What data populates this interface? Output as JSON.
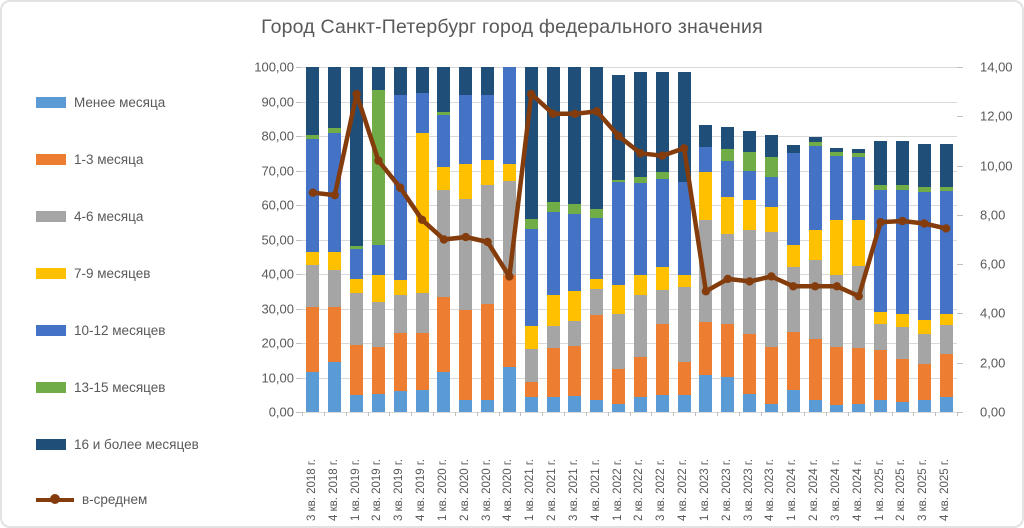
{
  "title": "Город Санкт-Петербург город федерального значения",
  "colors": {
    "text": "#595959",
    "grid": "#d9d9d9",
    "tick": "#bfbfbf",
    "border": "#e2e2e2",
    "background": "#ffffff"
  },
  "legend": [
    {
      "label": "Менее месяца",
      "color": "#5B9BD5",
      "type": "bar"
    },
    {
      "label": "1-3 месяца",
      "color": "#ED7D31",
      "type": "bar"
    },
    {
      "label": "4-6 месяца",
      "color": "#A5A5A5",
      "type": "bar"
    },
    {
      "label": "7-9 месяцев",
      "color": "#FFC000",
      "type": "bar"
    },
    {
      "label": "10-12 месяцев",
      "color": "#4472C4",
      "type": "bar"
    },
    {
      "label": "13-15 месяцев",
      "color": "#70AD47",
      "type": "bar"
    },
    {
      "label": "16 и более месяцев",
      "color": "#1F4E79",
      "type": "bar"
    },
    {
      "label": "в-среднем",
      "color": "#843C0C",
      "type": "line"
    }
  ],
  "left_axis": {
    "ticks": [
      "100,00",
      "90,00",
      "80,00",
      "70,00",
      "60,00",
      "50,00",
      "40,00",
      "30,00",
      "20,00",
      "10,00",
      "0,00"
    ],
    "min": 0,
    "max": 100,
    "step": 10
  },
  "right_axis": {
    "ticks": [
      "14,00",
      "12,00",
      "10,00",
      "8,00",
      "6,00",
      "4,00",
      "2,00",
      "0,00"
    ],
    "min": 0,
    "max": 14,
    "step": 2
  },
  "chart_data": {
    "type": "bar",
    "subtype": "stacked-bar-with-line",
    "title": "Город Санкт-Петербург город федерального значения",
    "left_ylim": [
      0,
      100
    ],
    "right_ylim": [
      0,
      14
    ],
    "grid": true,
    "legend_position": "left",
    "categories": [
      "3 кв. 2018 г.",
      "4 кв. 2018 г.",
      "1 кв. 2019 г.",
      "2 кв. 2019 г.",
      "3 кв. 2019 г.",
      "4 кв. 2019 г.",
      "1 кв. 2020 г.",
      "2 кв. 2020 г.",
      "3 кв. 2020 г.",
      "4 кв. 2020 г.",
      "1 кв. 2021 г.",
      "2 кв. 2021 г.",
      "3 кв. 2021 г.",
      "4 кв. 2021 г.",
      "1 кв. 2022 г.",
      "2 кв. 2022 г.",
      "3 кв. 2022 г.",
      "4 кв. 2022 г.",
      "1 кв. 2023 г.",
      "2 кв. 2023 г.",
      "3 кв. 2023 г.",
      "4 кв. 2023 г.",
      "1 кв. 2024 г.",
      "2 кв. 2024 г.",
      "3 кв. 2024 г.",
      "4 кв. 2024 г.",
      "1 кв. 2025 г.",
      "2 кв. 2025 г.",
      "3 кв. 2025 г.",
      "4 кв. 2025 г."
    ],
    "series": [
      {
        "name": "Менее месяца",
        "color": "#5B9BD5",
        "values": [
          11.7,
          14.6,
          4.9,
          5.3,
          6.0,
          6.4,
          11.6,
          3.5,
          3.4,
          13.0,
          4.3,
          4.3,
          4.5,
          3.4,
          2.4,
          4.3,
          4.8,
          4.8,
          10.6,
          10.1,
          5.3,
          2.4,
          6.3,
          3.4,
          1.9,
          2.2,
          3.4,
          2.9,
          3.4,
          4.3
        ]
      },
      {
        "name": "1-3 месяца",
        "color": "#ED7D31",
        "values": [
          18.8,
          15.9,
          14.5,
          13.5,
          16.8,
          16.4,
          21.7,
          26.0,
          28.0,
          26.6,
          4.4,
          14.3,
          14.5,
          24.6,
          10.2,
          11.6,
          20.8,
          9.7,
          15.5,
          15.5,
          17.4,
          16.4,
          16.9,
          17.9,
          16.9,
          16.4,
          14.5,
          12.6,
          10.6,
          12.6
        ]
      },
      {
        "name": "4-6 месяца",
        "color": "#A5A5A5",
        "values": [
          12.1,
          10.7,
          15.0,
          13.0,
          11.1,
          11.6,
          31.0,
          32.3,
          34.3,
          27.5,
          9.5,
          6.3,
          7.5,
          7.8,
          15.9,
          17.9,
          9.7,
          21.7,
          29.5,
          26.1,
          30.0,
          33.4,
          18.8,
          22.7,
          20.8,
          23.6,
          7.7,
          9.1,
          8.7,
          8.2
        ]
      },
      {
        "name": "7-9 месяцев",
        "color": "#FFC000",
        "values": [
          3.9,
          5.3,
          4.3,
          8.0,
          4.4,
          46.6,
          6.7,
          10.2,
          7.3,
          4.9,
          6.7,
          9.0,
          8.5,
          2.9,
          8.2,
          5.8,
          6.7,
          3.4,
          14.0,
          10.6,
          8.7,
          7.2,
          6.3,
          8.7,
          16.0,
          13.4,
          3.4,
          3.9,
          3.9,
          3.4
        ]
      },
      {
        "name": "10-12 месяцев",
        "color": "#4472C4",
        "values": [
          32.5,
          34.3,
          8.5,
          8.5,
          53.6,
          11.4,
          15.0,
          19.8,
          18.8,
          28.0,
          28.2,
          24.0,
          22.5,
          17.4,
          30.0,
          26.9,
          25.6,
          27.1,
          7.2,
          10.5,
          8.6,
          8.7,
          26.7,
          24.4,
          18.5,
          18.4,
          35.4,
          35.8,
          37.2,
          35.5
        ]
      },
      {
        "name": "13-15 месяцев",
        "color": "#70AD47",
        "values": [
          1.3,
          1.4,
          1.0,
          45.0,
          0,
          0,
          1.0,
          0,
          0,
          0,
          2.9,
          2.9,
          2.9,
          2.7,
          0.5,
          1.5,
          1.9,
          0,
          0,
          3.5,
          5.4,
          5.8,
          0,
          1.2,
          1.3,
          1.2,
          1.3,
          1.4,
          1.4,
          1.2
        ]
      },
      {
        "name": "16 и более месяцев",
        "color": "#1F4E79",
        "values": [
          19.7,
          17.8,
          51.8,
          6.7,
          8.1,
          7.6,
          13.0,
          8.2,
          8.2,
          0,
          44.0,
          39.1,
          39.6,
          41.2,
          30.4,
          30.5,
          29.0,
          31.8,
          6.3,
          6.3,
          6.2,
          6.3,
          2.5,
          1.5,
          1.0,
          1.0,
          13.0,
          13.0,
          12.4,
          12.5
        ]
      }
    ],
    "line_series": {
      "name": "в-среднем",
      "axis": "right",
      "color": "#843C0C",
      "values": [
        8.9,
        8.8,
        12.9,
        10.2,
        9.1,
        7.8,
        7.0,
        7.1,
        6.9,
        5.5,
        12.9,
        12.1,
        12.1,
        12.2,
        11.2,
        10.5,
        10.4,
        10.7,
        4.9,
        5.4,
        5.3,
        5.5,
        5.1,
        5.1,
        5.1,
        4.7,
        7.7,
        7.75,
        7.65,
        7.45
      ]
    }
  }
}
